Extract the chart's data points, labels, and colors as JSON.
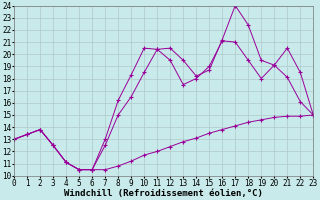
{
  "xlabel": "Windchill (Refroidissement éolien,°C)",
  "xlim": [
    0,
    23
  ],
  "ylim": [
    10,
    24
  ],
  "xticks": [
    0,
    1,
    2,
    3,
    4,
    5,
    6,
    7,
    8,
    9,
    10,
    11,
    12,
    13,
    14,
    15,
    16,
    17,
    18,
    19,
    20,
    21,
    22,
    23
  ],
  "yticks": [
    10,
    11,
    12,
    13,
    14,
    15,
    16,
    17,
    18,
    19,
    20,
    21,
    22,
    23,
    24
  ],
  "bg_color": "#c8eaea",
  "line_color": "#990099",
  "line1_x": [
    0,
    1,
    2,
    3,
    4,
    5,
    6,
    7,
    8,
    9,
    10,
    11,
    12,
    13,
    14,
    15,
    16,
    17,
    18,
    19,
    20,
    21,
    22,
    23
  ],
  "line1_y": [
    13.0,
    13.4,
    13.8,
    12.5,
    11.1,
    10.5,
    10.5,
    13.0,
    16.2,
    18.3,
    20.5,
    20.4,
    20.5,
    19.5,
    18.2,
    18.7,
    21.2,
    24.0,
    22.4,
    19.5,
    19.1,
    18.1,
    16.1,
    15.0
  ],
  "line2_x": [
    0,
    1,
    2,
    3,
    4,
    5,
    6,
    7,
    8,
    9,
    10,
    11,
    12,
    13,
    14,
    15,
    16,
    17,
    18,
    19,
    20,
    21,
    22,
    23
  ],
  "line2_y": [
    13.0,
    13.4,
    13.8,
    12.5,
    11.1,
    10.5,
    10.5,
    12.5,
    15.0,
    16.5,
    18.5,
    20.4,
    19.5,
    17.5,
    18.0,
    19.0,
    21.1,
    21.0,
    19.5,
    18.0,
    19.1,
    20.5,
    18.5,
    15.0
  ],
  "line3_x": [
    0,
    1,
    2,
    3,
    4,
    5,
    6,
    7,
    8,
    9,
    10,
    11,
    12,
    13,
    14,
    15,
    16,
    17,
    18,
    19,
    20,
    21,
    22,
    23
  ],
  "line3_y": [
    13.0,
    13.4,
    13.8,
    12.5,
    11.1,
    10.5,
    10.5,
    10.5,
    10.8,
    11.2,
    11.7,
    12.0,
    12.4,
    12.8,
    13.1,
    13.5,
    13.8,
    14.1,
    14.4,
    14.6,
    14.8,
    14.9,
    14.9,
    15.0
  ],
  "tick_fontsize": 5.5,
  "xlabel_fontsize": 6.5,
  "grid_color": "#b0c8c8"
}
